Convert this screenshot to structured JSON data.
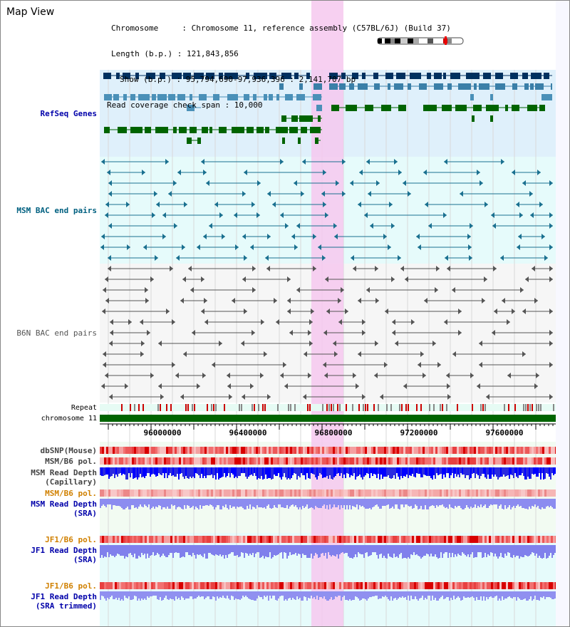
{
  "title": "Map View",
  "info": {
    "chromosome": "Chromosome     : Chromosome 11, reference assembly (C57BL/6J) (Build 37)",
    "length": "Length (b.p.) : 121,843,856",
    "show": "Show (b.p.) : 95,794,690-97,936,396 : 2,141,707 bp",
    "span": "Read coverage check span : 10,000"
  },
  "tracks": {
    "refseq": "RefSeq Genes",
    "msm_bac": "MSM BAC end pairs",
    "b6n_bac": "B6N BAC end pairs",
    "repeat": "Repeat",
    "chromosome": "chromosome 11",
    "dbsnp": "dbSNP(Mouse)",
    "msm_b6_pol_1": "MSM/B6 pol.",
    "msm_read_depth_cap_1": "MSM Read Depth",
    "msm_read_depth_cap_2": "(Capillary)",
    "msm_b6_pol_2": "MSM/B6 pol.",
    "msm_read_depth_sra_1": "MSM Read Depth",
    "msm_read_depth_sra_2": "(SRA)",
    "jf1_b6_pol_1": "JF1/B6 pol.",
    "jf1_read_depth_1": "JF1 Read Depth",
    "jf1_read_depth_2": "(SRA)",
    "jf1_b6_pol_2": "JF1/B6 pol.",
    "jf1_read_depth_trim_1": "JF1 Read Depth",
    "jf1_read_depth_trim_2": "(SRA trimmed)"
  },
  "axis": {
    "ticks": [
      "96000000",
      "96400000",
      "96800000",
      "97200000",
      "97600000"
    ]
  },
  "colors": {
    "refseq_bg": "#dff0fb",
    "msm_bg": "#e6fbfb",
    "b6n_bg": "#f6f6f6",
    "highlight": "#f6c8ee",
    "chromosome": "#006400",
    "dark_blue_label": "#0000aa",
    "teal_label": "#006080",
    "orange_label": "#d08000"
  }
}
